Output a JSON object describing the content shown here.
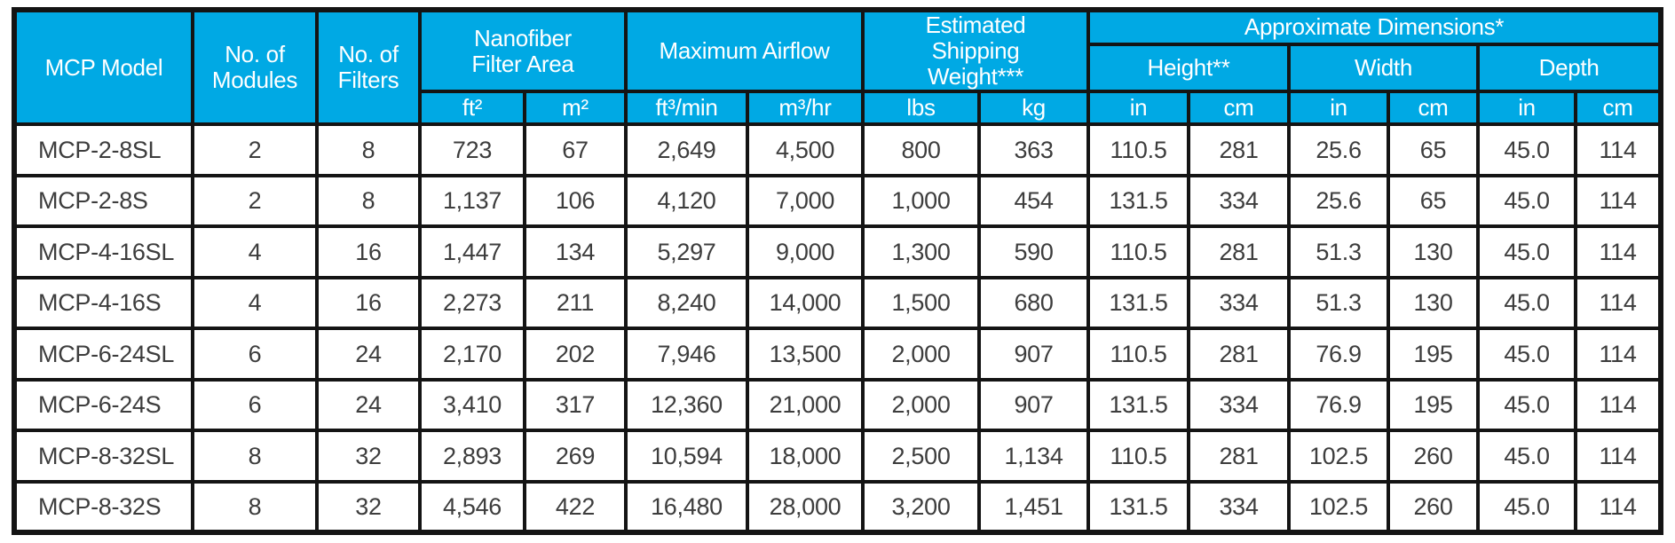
{
  "colors": {
    "header_bg": "#00A9E4",
    "border": "#141414",
    "header_text": "#FFFFFF",
    "body_text": "#3D3D3D"
  },
  "table": {
    "header": {
      "mcp_model": "MCP Model",
      "no_of_modules": "No. of\nModules",
      "no_of_filters": "No. of\nFilters",
      "nanofiber_filter_area": "Nanofiber\nFilter Area",
      "maximum_airflow": "Maximum Airflow",
      "estimated_shipping_weight": "Estimated\nShipping\nWeight***",
      "approximate_dimensions": "Approximate Dimensions*",
      "height": "Height**",
      "width": "Width",
      "depth": "Depth",
      "units": [
        "ft²",
        "m²",
        "ft³/min",
        "m³/hr",
        "lbs",
        "kg",
        "in",
        "cm",
        "in",
        "cm",
        "in",
        "cm"
      ]
    },
    "rows": [
      [
        "MCP-2-8SL",
        "2",
        "8",
        "723",
        "67",
        "2,649",
        "4,500",
        "800",
        "363",
        "110.5",
        "281",
        "25.6",
        "65",
        "45.0",
        "114"
      ],
      [
        "MCP-2-8S",
        "2",
        "8",
        "1,137",
        "106",
        "4,120",
        "7,000",
        "1,000",
        "454",
        "131.5",
        "334",
        "25.6",
        "65",
        "45.0",
        "114"
      ],
      [
        "MCP-4-16SL",
        "4",
        "16",
        "1,447",
        "134",
        "5,297",
        "9,000",
        "1,300",
        "590",
        "110.5",
        "281",
        "51.3",
        "130",
        "45.0",
        "114"
      ],
      [
        "MCP-4-16S",
        "4",
        "16",
        "2,273",
        "211",
        "8,240",
        "14,000",
        "1,500",
        "680",
        "131.5",
        "334",
        "51.3",
        "130",
        "45.0",
        "114"
      ],
      [
        "MCP-6-24SL",
        "6",
        "24",
        "2,170",
        "202",
        "7,946",
        "13,500",
        "2,000",
        "907",
        "110.5",
        "281",
        "76.9",
        "195",
        "45.0",
        "114"
      ],
      [
        "MCP-6-24S",
        "6",
        "24",
        "3,410",
        "317",
        "12,360",
        "21,000",
        "2,000",
        "907",
        "131.5",
        "334",
        "76.9",
        "195",
        "45.0",
        "114"
      ],
      [
        "MCP-8-32SL",
        "8",
        "32",
        "2,893",
        "269",
        "10,594",
        "18,000",
        "2,500",
        "1,134",
        "110.5",
        "281",
        "102.5",
        "260",
        "45.0",
        "114"
      ],
      [
        "MCP-8-32S",
        "8",
        "32",
        "4,546",
        "422",
        "16,480",
        "28,000",
        "3,200",
        "1,451",
        "131.5",
        "334",
        "102.5",
        "260",
        "45.0",
        "114"
      ]
    ]
  }
}
